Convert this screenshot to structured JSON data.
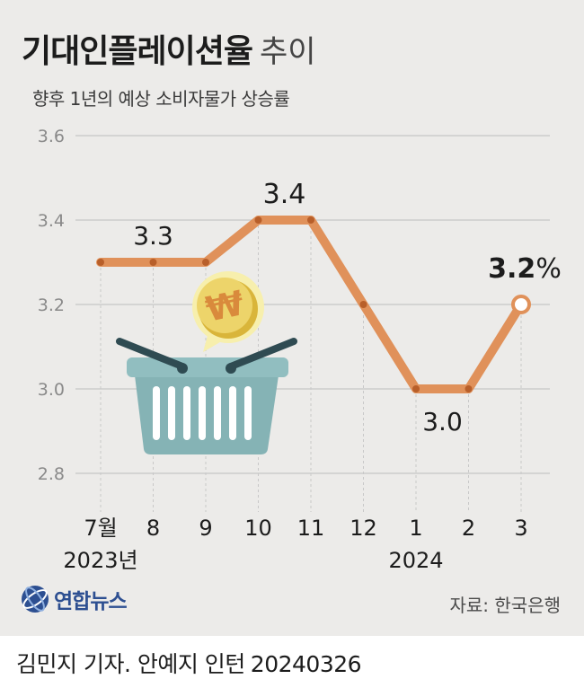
{
  "title": "기대인플레이션율",
  "title_suffix": "추이",
  "subtitle": "향후 1년의 예상 소비자물가 상승률",
  "source": "자료: 한국은행",
  "logo_text": "연합뉴스",
  "byline": "김민지 기자. 안예지 인턴",
  "date": "20240326",
  "colors": {
    "line": "#e0915a",
    "marker": "#b85f2a",
    "grid": "#bdbdbd",
    "background": "#ecebe9",
    "logo": "#2d4f91"
  },
  "chart_data": {
    "type": "line",
    "categories": [
      "7월",
      "8",
      "9",
      "10",
      "11",
      "12",
      "1",
      "2",
      "3"
    ],
    "year_labels": [
      {
        "label": "2023년",
        "under": "7월"
      },
      {
        "label": "2024",
        "under": "1"
      }
    ],
    "values": [
      3.3,
      3.3,
      3.3,
      3.4,
      3.4,
      3.2,
      3.0,
      3.0,
      3.2
    ],
    "unit": "%",
    "ylim": [
      2.8,
      3.6
    ],
    "yticks": [
      "2.8",
      "3.0",
      "3.2",
      "3.4",
      "3.6"
    ],
    "grid": true,
    "annotations": [
      {
        "index": 1,
        "text": "3.3"
      },
      {
        "index": 3,
        "text": "3.4"
      },
      {
        "index": 7,
        "text": "3.0"
      },
      {
        "index": 8,
        "text": "3.2%"
      }
    ],
    "decoration_icons": [
      "shopping-basket-icon",
      "won-coin-icon"
    ]
  }
}
